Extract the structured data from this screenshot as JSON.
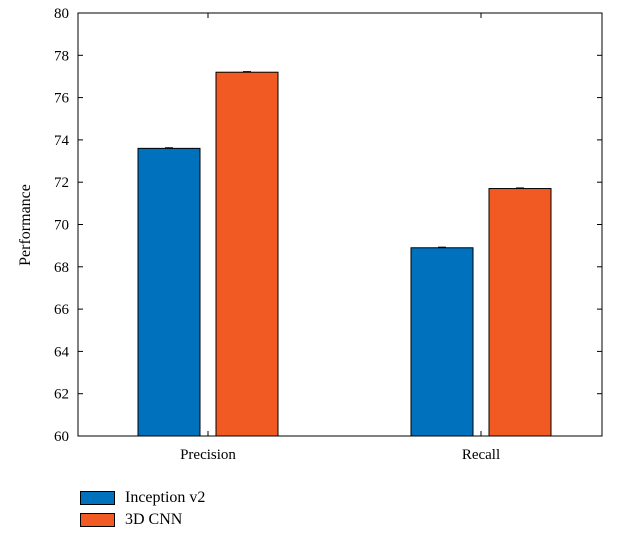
{
  "chart_data": {
    "type": "bar",
    "categories": [
      "Precision",
      "Recall"
    ],
    "series": [
      {
        "name": "Inception v2",
        "values": [
          73.6,
          68.9
        ],
        "color": "#0072BD"
      },
      {
        "name": "3D CNN",
        "values": [
          77.2,
          71.7
        ],
        "color": "#F15A22"
      }
    ],
    "xlabel": "",
    "ylabel": "Performance",
    "ylim": [
      60,
      80
    ],
    "yticks": [
      60,
      62,
      64,
      66,
      68,
      70,
      72,
      74,
      76,
      78,
      80
    ],
    "error_bars": true,
    "grid": false,
    "legend_placement": "bottom-left"
  }
}
